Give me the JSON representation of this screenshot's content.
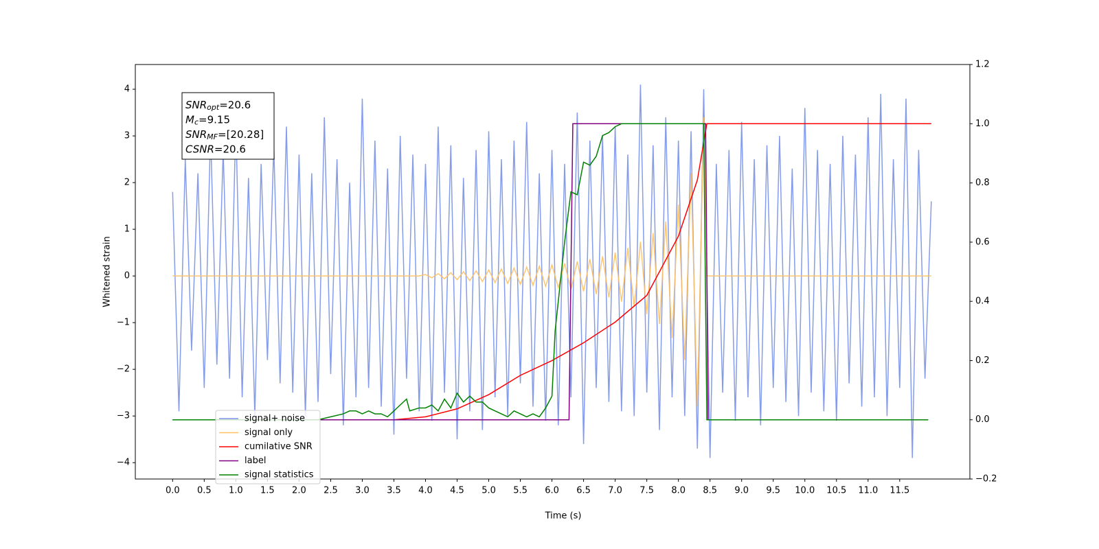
{
  "chart_data": {
    "type": "line",
    "xlabel": "Time (s)",
    "ylabel": "Whitened strain",
    "xlim": [
      -0.59,
      12.61
    ],
    "ylim": [
      -4.35,
      4.53
    ],
    "y2lim": [
      -0.2,
      1.2
    ],
    "xticks": [
      {
        "value": 0,
        "label": "0.0"
      },
      0.5,
      {
        "value": 1,
        "label": "1.0"
      },
      1.5,
      {
        "value": 2,
        "label": "2.0"
      },
      2.5,
      {
        "value": 3,
        "label": "3.0"
      },
      3.5,
      {
        "value": 4,
        "label": "4.0"
      },
      4.5,
      {
        "value": 5,
        "label": "5.0"
      },
      5.5,
      {
        "value": 6,
        "label": "6.0"
      },
      6.5,
      {
        "value": 7,
        "label": "7.0"
      },
      7.5,
      {
        "value": 8,
        "label": "8.0"
      },
      8.5,
      {
        "value": 9,
        "label": "9.0"
      },
      9.5,
      {
        "value": 10,
        "label": "10.0"
      },
      10.5,
      {
        "value": 11,
        "label": "11.0"
      },
      11.5
    ],
    "yticks": [
      {
        "value": -4,
        "label": "−4"
      },
      {
        "value": -3,
        "label": "−3"
      },
      {
        "value": -2,
        "label": "−2"
      },
      {
        "value": -1,
        "label": "−1"
      },
      0,
      1,
      2,
      3,
      4
    ],
    "y2ticks": [
      {
        "value": -0.2,
        "label": "−0.2"
      },
      {
        "value": 0,
        "label": "0.0"
      },
      0.2,
      0.4,
      0.6,
      0.8,
      {
        "value": 1,
        "label": "1.0"
      },
      1.2
    ],
    "legend_loc": "lower left",
    "annotation": [
      {
        "var": "SNR",
        "sub": "opt",
        "text": "=20.6"
      },
      {
        "var": "M",
        "sub": "c",
        "text": "=9.15"
      },
      {
        "var": "SNR",
        "sub": "MF",
        "text": "=[20.28]"
      },
      {
        "var": "CSNR",
        "text": "=20.6"
      }
    ],
    "series": [
      {
        "name": "signal+ noise",
        "color": "#7891e8",
        "x": [
          0,
          0.1,
          0.2,
          0.3,
          0.4,
          0.5,
          0.6,
          0.7,
          0.8,
          0.9,
          1,
          1.1,
          1.2,
          1.3,
          1.4,
          1.5,
          1.6,
          1.7,
          1.8,
          1.9,
          2,
          2.1,
          2.2,
          2.3,
          2.4,
          2.5,
          2.6,
          2.7,
          2.8,
          2.9,
          3,
          3.1,
          3.2,
          3.3,
          3.4,
          3.5,
          3.6,
          3.7,
          3.8,
          3.9,
          4,
          4.1,
          4.2,
          4.3,
          4.4,
          4.5,
          4.6,
          4.7,
          4.8,
          4.9,
          5,
          5.1,
          5.2,
          5.3,
          5.4,
          5.5,
          5.6,
          5.7,
          5.8,
          5.9,
          6,
          6.1,
          6.2,
          6.3,
          6.4,
          6.5,
          6.6,
          6.7,
          6.8,
          6.9,
          7,
          7.1,
          7.2,
          7.3,
          7.4,
          7.5,
          7.6,
          7.7,
          7.8,
          7.9,
          8,
          8.1,
          8.2,
          8.3,
          8.4,
          8.5,
          8.6,
          8.7,
          8.8,
          8.9,
          9,
          9.1,
          9.2,
          9.3,
          9.4,
          9.5,
          9.6,
          9.7,
          9.8,
          9.9,
          10,
          10.1,
          10.2,
          10.3,
          10.4,
          10.5,
          10.6,
          10.7,
          10.8,
          10.9,
          11,
          11.1,
          11.2,
          11.3,
          11.4,
          11.5,
          11.6,
          11.7,
          11.8,
          11.9,
          12
        ],
        "values": [
          1.8,
          -2.9,
          2.5,
          -1.6,
          2.2,
          -2.4,
          3.1,
          -1.9,
          2.7,
          -2.2,
          3.3,
          -2.6,
          2.1,
          -3.0,
          2.4,
          -1.8,
          2.8,
          -2.3,
          3.2,
          -2.5,
          2.6,
          -3.0,
          2.2,
          -2.7,
          3.4,
          -2.1,
          2.5,
          -3.2,
          2.0,
          -2.6,
          3.8,
          -2.4,
          2.9,
          -2.8,
          2.3,
          -3.4,
          3.0,
          -2.2,
          2.6,
          -2.9,
          2.4,
          -3.1,
          3.2,
          -2.5,
          2.8,
          -3.5,
          2.1,
          -2.9,
          2.7,
          -3.3,
          3.1,
          -2.6,
          2.5,
          -3.0,
          2.9,
          -2.3,
          3.3,
          -2.8,
          2.2,
          -3.1,
          2.7,
          -3.2,
          2.4,
          -2.6,
          3.5,
          -3.6,
          2.9,
          -2.4,
          3.0,
          -2.7,
          3.2,
          -2.9,
          2.6,
          -3.0,
          4.1,
          -2.5,
          2.8,
          -3.3,
          3.4,
          -2.6,
          2.9,
          -3.0,
          3.1,
          -3.7,
          4.0,
          -3.9,
          2.4,
          -2.5,
          2.7,
          -3.1,
          3.3,
          -2.6,
          2.5,
          -3.2,
          2.8,
          -2.4,
          3.0,
          -2.7,
          2.3,
          -3.0,
          3.6,
          -2.5,
          2.7,
          -2.9,
          2.4,
          -3.1,
          3.0,
          -2.3,
          2.6,
          -2.8,
          3.4,
          -2.6,
          3.9,
          -3.0,
          2.5,
          -2.4,
          3.8,
          -3.9,
          2.7,
          -2.2,
          1.6
        ]
      },
      {
        "name": "signal only",
        "color": "#ffc060",
        "x": [
          0,
          3.9,
          4,
          4.1,
          4.2,
          4.3,
          4.4,
          4.5,
          4.6,
          4.7,
          4.8,
          4.9,
          5,
          5.1,
          5.2,
          5.3,
          5.4,
          5.5,
          5.6,
          5.7,
          5.8,
          5.9,
          6,
          6.1,
          6.2,
          6.3,
          6.4,
          6.5,
          6.6,
          6.7,
          6.8,
          6.9,
          7,
          7.1,
          7.2,
          7.3,
          7.4,
          7.5,
          7.6,
          7.7,
          7.8,
          7.9,
          8,
          8.1,
          8.2,
          8.3,
          8.4,
          8.45,
          12
        ],
        "values": [
          0,
          0,
          0.03,
          -0.04,
          0.05,
          -0.06,
          0.07,
          -0.08,
          0.09,
          -0.1,
          0.11,
          -0.12,
          0.13,
          -0.14,
          0.15,
          -0.16,
          0.17,
          -0.18,
          0.19,
          -0.2,
          0.21,
          -0.22,
          0.24,
          -0.25,
          0.27,
          -0.29,
          0.31,
          -0.33,
          0.36,
          -0.39,
          0.42,
          -0.46,
          0.5,
          -0.55,
          0.6,
          -0.66,
          0.73,
          -0.82,
          0.92,
          -1.03,
          1.17,
          -1.33,
          1.53,
          -1.8,
          2.2,
          -2.8,
          3.4,
          0,
          0
        ]
      },
      {
        "name": "cumilative SNR",
        "color": "#ff0000",
        "axis": "y2",
        "x": [
          0,
          3.5,
          4,
          4.5,
          5,
          5.5,
          6,
          6.5,
          7,
          7.5,
          8,
          8.3,
          8.45,
          12
        ],
        "values": [
          0,
          0,
          0.01,
          0.037,
          0.085,
          0.15,
          0.2,
          0.26,
          0.33,
          0.42,
          0.62,
          0.81,
          1,
          1
        ]
      },
      {
        "name": "label",
        "color": "#800080",
        "axis": "y2",
        "x": [
          0,
          6.27,
          6.33,
          8.43,
          8.47,
          11.95
        ],
        "values": [
          0,
          0,
          1,
          1,
          0,
          0
        ]
      },
      {
        "name": "signal statistics",
        "color": "#008000",
        "axis": "y2",
        "x": [
          0,
          2.3,
          2.5,
          2.7,
          2.8,
          2.9,
          3,
          3.1,
          3.2,
          3.3,
          3.4,
          3.5,
          3.6,
          3.7,
          3.75,
          3.9,
          4,
          4.1,
          4.2,
          4.3,
          4.4,
          4.5,
          4.6,
          4.7,
          4.8,
          4.9,
          5,
          5.1,
          5.2,
          5.3,
          5.4,
          5.5,
          5.6,
          5.7,
          5.8,
          5.9,
          6,
          6.05,
          6.1,
          6.2,
          6.3,
          6.4,
          6.5,
          6.6,
          6.7,
          6.8,
          6.9,
          7,
          7.1,
          8.4,
          8.45,
          11.95
        ],
        "values": [
          0,
          0,
          0.01,
          0.02,
          0.03,
          0.03,
          0.02,
          0.03,
          0.02,
          0.02,
          0.01,
          0.03,
          0.05,
          0.07,
          0.03,
          0.04,
          0.04,
          0.05,
          0.03,
          0.07,
          0.04,
          0.09,
          0.06,
          0.08,
          0.06,
          0.06,
          0.04,
          0.03,
          0.02,
          0.01,
          0.03,
          0.02,
          0.01,
          0.02,
          0.01,
          0.04,
          0.08,
          0.3,
          0.4,
          0.6,
          0.77,
          0.76,
          0.87,
          0.86,
          0.89,
          0.96,
          0.97,
          0.99,
          1,
          1,
          0,
          0
        ]
      }
    ]
  }
}
